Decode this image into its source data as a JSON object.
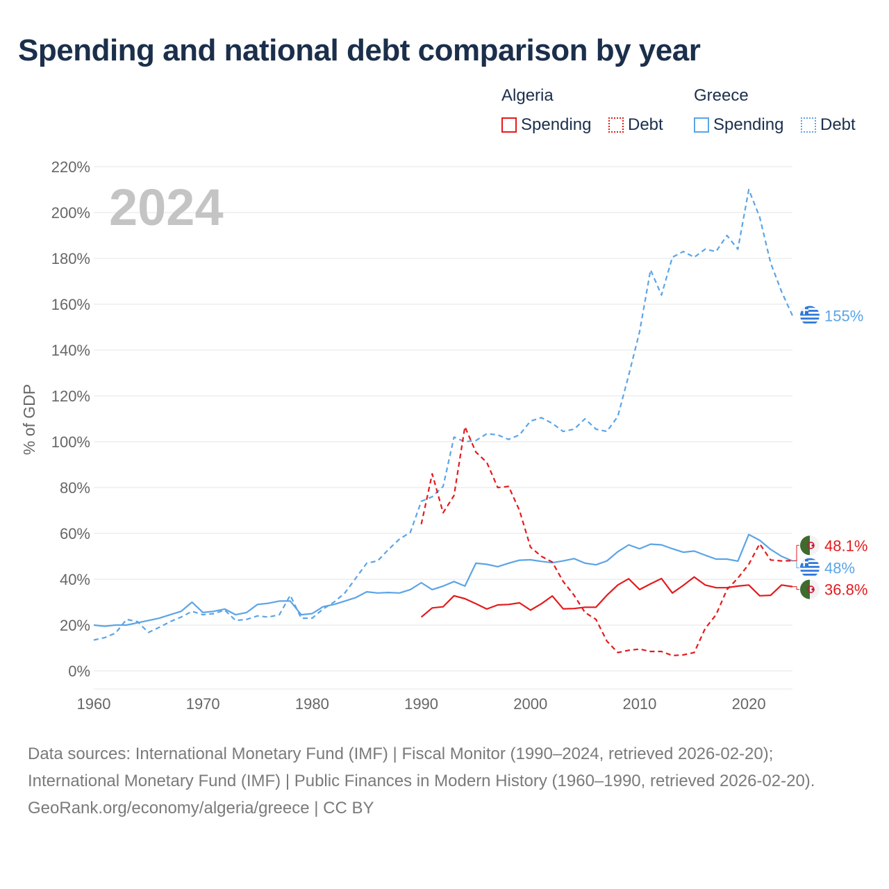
{
  "title": "Spending and national debt comparison by year",
  "legend": {
    "groups": [
      {
        "name": "Algeria",
        "spending_label": "Spending",
        "debt_label": "Debt",
        "color": "#e31a1c"
      },
      {
        "name": "Greece",
        "spending_label": "Spending",
        "debt_label": "Debt",
        "color": "#5ba4e6"
      }
    ]
  },
  "footer": {
    "sources": "Data sources: International Monetary Fund (IMF) | Fiscal Monitor (1990–2024, retrieved 2026-02-20); International Monetary Fund (IMF) | Public Finances in Modern History (1960–1990, retrieved 2026-02-20).",
    "credit": "GeoRank.org/economy/algeria/greece | CC BY"
  },
  "chart_data": {
    "type": "line",
    "year_watermark": "2024",
    "ylabel": "% of GDP",
    "xlabel": "",
    "xlim": [
      1960,
      2024
    ],
    "ylim": [
      0,
      220
    ],
    "x_ticks": [
      1960,
      1970,
      1980,
      1990,
      2000,
      2010,
      2020
    ],
    "y_ticks": [
      0,
      20,
      40,
      60,
      80,
      100,
      120,
      140,
      160,
      180,
      200,
      220
    ],
    "y_tick_labels": [
      "0%",
      "20%",
      "40%",
      "60%",
      "80%",
      "100%",
      "120%",
      "140%",
      "160%",
      "180%",
      "200%",
      "220%"
    ],
    "series": [
      {
        "name": "Greece Debt",
        "country": "Greece",
        "measure": "Debt",
        "color": "#5ba4e6",
        "dashed": true,
        "end_label": "155%",
        "x": [
          1960,
          1961,
          1962,
          1963,
          1964,
          1965,
          1966,
          1967,
          1968,
          1969,
          1970,
          1971,
          1972,
          1973,
          1974,
          1975,
          1976,
          1977,
          1978,
          1979,
          1980,
          1981,
          1982,
          1983,
          1984,
          1985,
          1986,
          1987,
          1988,
          1989,
          1990,
          1991,
          1992,
          1993,
          1994,
          1995,
          1996,
          1997,
          1998,
          1999,
          2000,
          2001,
          2002,
          2003,
          2004,
          2005,
          2006,
          2007,
          2008,
          2009,
          2010,
          2011,
          2012,
          2013,
          2014,
          2015,
          2016,
          2017,
          2018,
          2019,
          2020,
          2021,
          2022,
          2023,
          2024
        ],
        "values": [
          13.5,
          14.5,
          16.5,
          22.5,
          21.5,
          16.8,
          19,
          21.5,
          23.5,
          26,
          24.5,
          25,
          26.5,
          22,
          22.5,
          24,
          23.5,
          24.5,
          33,
          23,
          23,
          27,
          30,
          34,
          40.5,
          47,
          48,
          53,
          57.5,
          60.5,
          74,
          76,
          80.5,
          102,
          100,
          100.5,
          103.5,
          103,
          101,
          103,
          109,
          110.5,
          108,
          104.5,
          105.5,
          110,
          105.5,
          104.5,
          111,
          129,
          148,
          175,
          164,
          180.5,
          183,
          180.5,
          184,
          183,
          190,
          184,
          210,
          198,
          178,
          165.5,
          155
        ]
      },
      {
        "name": "Greece Spending",
        "country": "Greece",
        "measure": "Spending",
        "color": "#5ba4e6",
        "dashed": false,
        "end_label": "48%",
        "x": [
          1960,
          1961,
          1962,
          1963,
          1964,
          1965,
          1966,
          1967,
          1968,
          1969,
          1970,
          1971,
          1972,
          1973,
          1974,
          1975,
          1976,
          1977,
          1978,
          1979,
          1980,
          1981,
          1982,
          1983,
          1984,
          1985,
          1986,
          1987,
          1988,
          1989,
          1990,
          1991,
          1992,
          1993,
          1994,
          1995,
          1996,
          1997,
          1998,
          1999,
          2000,
          2001,
          2002,
          2003,
          2004,
          2005,
          2006,
          2007,
          2008,
          2009,
          2010,
          2011,
          2012,
          2013,
          2014,
          2015,
          2016,
          2017,
          2018,
          2019,
          2020,
          2021,
          2022,
          2023,
          2024
        ],
        "values": [
          20,
          19.5,
          20,
          20,
          21,
          22,
          23,
          24.5,
          26,
          30,
          25.5,
          26,
          27,
          24.5,
          25.5,
          29,
          29.5,
          30.5,
          30.5,
          24.5,
          25,
          28,
          29,
          30.5,
          32,
          34.5,
          34,
          34.2,
          34,
          35.5,
          38.5,
          35.5,
          37,
          39,
          37,
          47,
          46.5,
          45.5,
          47,
          48.3,
          48.5,
          47.8,
          47.2,
          48,
          49,
          47,
          46.3,
          48,
          52,
          55,
          53.3,
          55.3,
          55,
          53.3,
          51.8,
          52.3,
          50.5,
          48.8,
          48.8,
          47.9,
          59.5,
          57,
          53,
          50,
          48
        ]
      },
      {
        "name": "Algeria Debt",
        "country": "Algeria",
        "measure": "Debt",
        "color": "#e31a1c",
        "dashed": true,
        "end_label": "48.1%",
        "x": [
          1990,
          1991,
          1992,
          1993,
          1994,
          1995,
          1996,
          1997,
          1998,
          1999,
          2000,
          2001,
          2002,
          2003,
          2004,
          2005,
          2006,
          2007,
          2008,
          2009,
          2010,
          2011,
          2012,
          2013,
          2014,
          2015,
          2016,
          2017,
          2018,
          2019,
          2020,
          2021,
          2022,
          2023,
          2024
        ],
        "values": [
          64,
          86,
          69,
          76.5,
          106.5,
          95.5,
          91,
          80,
          80.5,
          70,
          54,
          50,
          47.5,
          39,
          33,
          25.5,
          22.5,
          13,
          8,
          9,
          9.5,
          8.5,
          8.5,
          6.7,
          7,
          8,
          18.5,
          24.5,
          35.5,
          40.5,
          46.5,
          55.5,
          48.4,
          48,
          48.1
        ]
      },
      {
        "name": "Algeria Spending",
        "country": "Algeria",
        "measure": "Spending",
        "color": "#e31a1c",
        "dashed": false,
        "end_label": "36.8%",
        "x": [
          1990,
          1991,
          1992,
          1993,
          1994,
          1995,
          1996,
          1997,
          1998,
          1999,
          2000,
          2001,
          2002,
          2003,
          2004,
          2005,
          2006,
          2007,
          2008,
          2009,
          2010,
          2011,
          2012,
          2013,
          2014,
          2015,
          2016,
          2017,
          2018,
          2019,
          2020,
          2021,
          2022,
          2023,
          2024
        ],
        "values": [
          23.5,
          27.5,
          28,
          32.8,
          31.5,
          29.3,
          27,
          28.8,
          29,
          29.7,
          26.5,
          29.3,
          32.7,
          27.1,
          27.2,
          27.8,
          27.8,
          33,
          37.5,
          40.2,
          35.5,
          38,
          40.3,
          34,
          37.3,
          41,
          37.5,
          36.3,
          36.3,
          37,
          37.5,
          32.8,
          33,
          37.5,
          36.8
        ]
      }
    ]
  }
}
